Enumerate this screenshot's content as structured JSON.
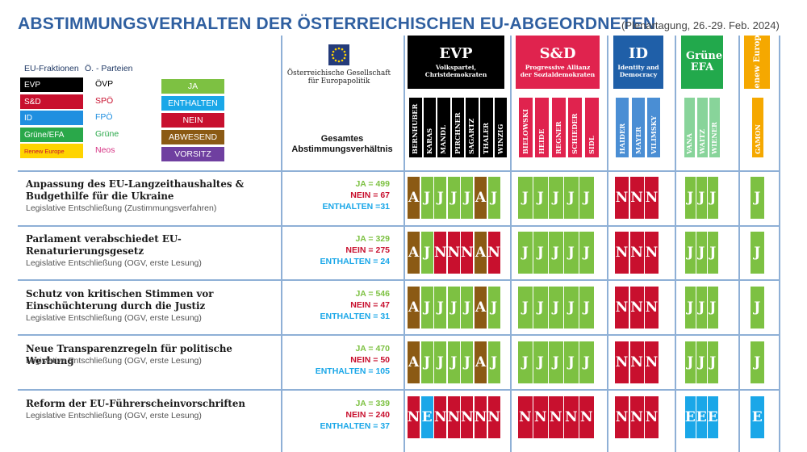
{
  "header": {
    "title": "ABSTIMMUNGSVERHALTEN DER ÖSTERREICHISCHEN  EU-ABGEORDNETEN",
    "subtitle": "(Plenartagung, 26.-29. Feb. 2024)"
  },
  "legend": {
    "fraktionen_heading": "EU-Fraktionen",
    "parteien_heading": "Ö. - Parteien",
    "items": [
      {
        "fraktion": "EVP",
        "partei": "ÖVP",
        "bg": "#000000",
        "fg": "#ffffff",
        "partei_color": "#000000"
      },
      {
        "fraktion": "S&D",
        "partei": "SPÖ",
        "bg": "#c8102e",
        "fg": "#ffffff",
        "partei_color": "#c8102e"
      },
      {
        "fraktion": "ID",
        "partei": "FPÖ",
        "bg": "#1f8fe0",
        "fg": "#ffffff",
        "partei_color": "#1f8fe0"
      },
      {
        "fraktion": "Grüne/EFA",
        "partei": "Grüne",
        "bg": "#2aa84a",
        "fg": "#ffffff",
        "partei_color": "#2aa84a"
      },
      {
        "fraktion": "Renew Europe",
        "partei": "Neos",
        "bg": "#ffd400",
        "fg": "#c8102e",
        "partei_color": "#d63384"
      }
    ],
    "votes": [
      {
        "label": "JA",
        "color": "#7dc142"
      },
      {
        "label": "ENTHALTEN",
        "color": "#1aa7e8"
      },
      {
        "label": "NEIN",
        "color": "#c8102e"
      },
      {
        "label": "ABWESEND",
        "color": "#8b5a14"
      },
      {
        "label": "VORSITZ",
        "color": "#6f3fa0"
      }
    ]
  },
  "org": {
    "name": "Österreichische Gesellschaft für Europapolitik",
    "column_heading": "Gesamtes Abstimmungsverhältnis"
  },
  "groups": [
    {
      "key": "EVP",
      "name": "EVP",
      "subtitle": "Volkspartei, Christdemokraten",
      "bg": "#000000",
      "name_color": "#000000",
      "meps": [
        "BERNHUBER",
        "KARAS",
        "MANDL",
        "PIRCHNER",
        "SAGARTZ",
        "THALER",
        "WINZIG"
      ]
    },
    {
      "key": "SD",
      "name": "S&D",
      "subtitle": "Progressive Allianz der Sozialdemokraten",
      "bg": "#e0234e",
      "name_color": "#e0234e",
      "meps": [
        "BIELOWSKI",
        "HEIDE",
        "REGNER",
        "SCHIEDER",
        "SIDL"
      ]
    },
    {
      "key": "ID",
      "name": "ID",
      "subtitle": "Identity and Democracy",
      "bg": "#1f5fa8",
      "name_color": "#4a8ed4",
      "meps": [
        "HAIDER",
        "MAYER",
        "VILIMSKY"
      ]
    },
    {
      "key": "GR",
      "name": "Grüne EFA",
      "subtitle": "",
      "bg": "#22a94c",
      "name_color": "#88d49a",
      "meps": [
        "VANA",
        "WAITZ",
        "WIENER"
      ]
    },
    {
      "key": "RE",
      "name": "Renew Europe",
      "subtitle": "",
      "bg": "#f5a800",
      "name_color": "#f5a800",
      "meps": [
        "GAMON"
      ]
    }
  ],
  "chart_data": {
    "type": "table",
    "vote_codes": {
      "J": "JA",
      "N": "NEIN",
      "E": "ENTHALTEN",
      "A": "ABWESEND"
    },
    "rows": [
      {
        "title": "Anpassung des EU-Langzeithaushaltes & Budgethilfe für die Ukraine",
        "subtitle": "Legislative Entschließung (Zustimmungsverfahren)",
        "totals": {
          "ja": "JA = 499",
          "nein": "NEIN  = 67",
          "enthalten": "ENTHALTEN  =31"
        },
        "votes": {
          "EVP": [
            "A",
            "J",
            "J",
            "J",
            "J",
            "A",
            "J"
          ],
          "SD": [
            "J",
            "J",
            "J",
            "J",
            "J"
          ],
          "ID": [
            "N",
            "N",
            "N"
          ],
          "GR": [
            "J",
            "J",
            "J"
          ],
          "RE": [
            "J"
          ]
        }
      },
      {
        "title": "Parlament verabschiedet EU-Renaturierungsgesetz",
        "subtitle": "Legislative Entschließung (OGV, erste Lesung)",
        "totals": {
          "ja": "JA = 329",
          "nein": "NEIN  = 275",
          "enthalten": "ENTHALTEN  = 24"
        },
        "votes": {
          "EVP": [
            "A",
            "J",
            "N",
            "N",
            "N",
            "A",
            "N"
          ],
          "SD": [
            "J",
            "J",
            "J",
            "J",
            "J"
          ],
          "ID": [
            "N",
            "N",
            "N"
          ],
          "GR": [
            "J",
            "J",
            "J"
          ],
          "RE": [
            "J"
          ]
        }
      },
      {
        "title": "Schutz von kritischen Stimmen vor Einschüchterung durch die Justiz",
        "subtitle": "Legislative Entschließung (OGV, erste Lesung)",
        "totals": {
          "ja": "JA = 546",
          "nein": "NEIN  = 47",
          "enthalten": "ENTHALTEN  = 31"
        },
        "votes": {
          "EVP": [
            "A",
            "J",
            "J",
            "J",
            "J",
            "A",
            "J"
          ],
          "SD": [
            "J",
            "J",
            "J",
            "J",
            "J"
          ],
          "ID": [
            "N",
            "N",
            "N"
          ],
          "GR": [
            "J",
            "J",
            "J"
          ],
          "RE": [
            "J"
          ]
        }
      },
      {
        "title": "Neue Transparenzregeln für politische Werbung",
        "subtitle": "Legislative Entschließung (OGV, erste Lesung)",
        "totals": {
          "ja": "JA = 470",
          "nein": "NEIN  = 50",
          "enthalten": "ENTHALTEN  = 105"
        },
        "votes": {
          "EVP": [
            "A",
            "J",
            "J",
            "J",
            "J",
            "A",
            "J"
          ],
          "SD": [
            "J",
            "J",
            "J",
            "J",
            "J"
          ],
          "ID": [
            "N",
            "N",
            "N"
          ],
          "GR": [
            "J",
            "J",
            "J"
          ],
          "RE": [
            "J"
          ]
        }
      },
      {
        "title": "Reform der EU-Führerscheinvorschriften",
        "subtitle": "Legislative Entschließung (OGV, erste Lesung)",
        "totals": {
          "ja": "JA = 339",
          "nein": "NEIN  = 240",
          "enthalten": "ENTHALTEN  = 37"
        },
        "votes": {
          "EVP": [
            "N",
            "E",
            "N",
            "N",
            "N",
            "N",
            "N"
          ],
          "SD": [
            "N",
            "N",
            "N",
            "N",
            "N"
          ],
          "ID": [
            "N",
            "N",
            "N"
          ],
          "GR": [
            "E",
            "E",
            "E"
          ],
          "RE": [
            "E"
          ]
        }
      }
    ]
  }
}
